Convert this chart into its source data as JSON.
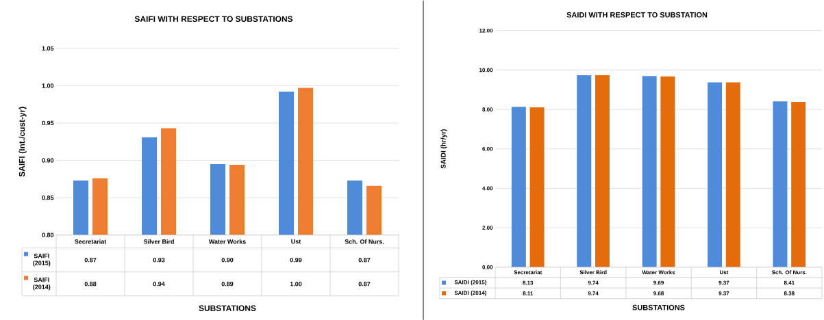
{
  "chart_data": [
    {
      "type": "bar",
      "title": "SAIFI WITH RESPECT TO SUBSTATIONS",
      "xlabel": "SUBSTATIONS",
      "ylabel": "SAIFI (Int./cust-yr)",
      "categories": [
        "Secretariat",
        "Silver Bird",
        "Water Works",
        "Ust",
        "Sch. Of Nurs."
      ],
      "series": [
        {
          "name": "SAIFI (2015)",
          "color": "#4f8bd9",
          "values": [
            0.873,
            0.931,
            0.895,
            0.992,
            0.873
          ],
          "value_labels": [
            "0.87",
            "0.93",
            "0.90",
            "0.99",
            "0.87"
          ]
        },
        {
          "name": "SAIFI (2014)",
          "color": "#ed7d31",
          "values": [
            0.876,
            0.943,
            0.894,
            0.997,
            0.866
          ],
          "value_labels": [
            "0.88",
            "0.94",
            "0.89",
            "1.00",
            "0.87"
          ]
        }
      ],
      "ylim": [
        0.8,
        1.05
      ],
      "yticks": [
        {
          "value": 0.8,
          "label": "0.80"
        },
        {
          "value": 0.85,
          "label": "0.85"
        },
        {
          "value": 0.9,
          "label": "0.90"
        },
        {
          "value": 0.95,
          "label": "0.95"
        },
        {
          "value": 1.0,
          "label": "1.00"
        },
        {
          "value": 1.05,
          "label": "1.05"
        }
      ],
      "grid": "y",
      "legend": "bottom"
    },
    {
      "type": "bar",
      "title": "SAIDI WITH RESPECT TO SUBSTATION",
      "xlabel": "SUBSTATIONS",
      "ylabel": "SAIDI (hr/yr)",
      "categories": [
        "Secretariat",
        "Silver Bird",
        "Water Works",
        "Ust",
        "Sch. Of Nurs."
      ],
      "series": [
        {
          "name": "SAIDI (2015)",
          "color": "#4f8bd9",
          "values": [
            8.13,
            9.74,
            9.69,
            9.37,
            8.41
          ]
        },
        {
          "name": "SAIDI (2014)",
          "color": "#e46c0a",
          "values": [
            8.11,
            9.74,
            9.68,
            9.37,
            8.38
          ]
        }
      ],
      "data_labels": true,
      "ylim": [
        0,
        12
      ],
      "yticks": [
        {
          "value": 0,
          "label": "0.00"
        },
        {
          "value": 2,
          "label": "2.00"
        },
        {
          "value": 4,
          "label": "4.00"
        },
        {
          "value": 6,
          "label": "6.00"
        },
        {
          "value": 8,
          "label": "8.00"
        },
        {
          "value": 10,
          "label": "10.00"
        },
        {
          "value": 12,
          "label": "12.00"
        }
      ],
      "grid": "y",
      "legend": "bottom"
    }
  ]
}
